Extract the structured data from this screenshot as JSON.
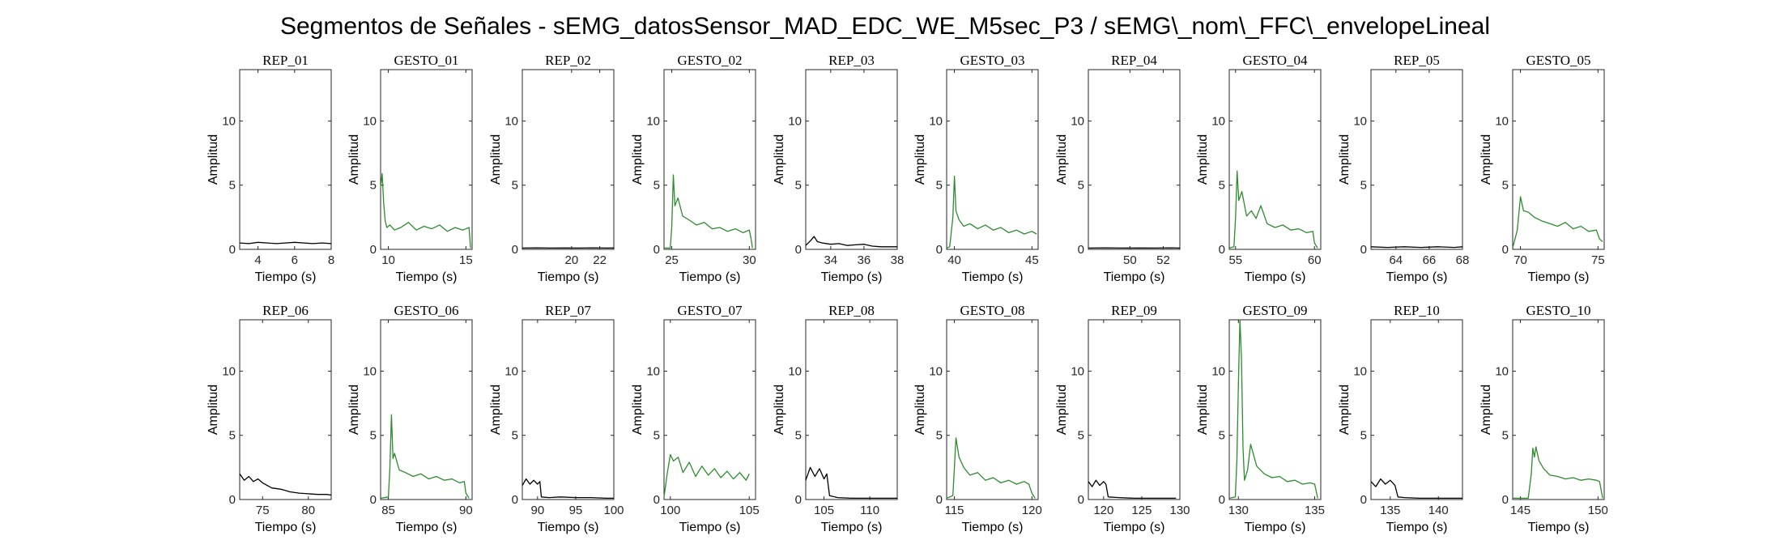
{
  "figure": {
    "title": "Segmentos de Señales - sEMG_datosSensor_MAD_EDC_WE_M5sec_P3 / sEMG\\_nom\\_FFC\\_envelopeLineal",
    "xlabel": "Tiempo (s)",
    "ylabel": "Amplitud",
    "colors": {
      "rep": "#000000",
      "gesto": "#2e8b2e",
      "axis": "#262626"
    }
  },
  "chart_data": [
    {
      "type": "line",
      "title": "REP_01",
      "kind": "rep",
      "xlim": [
        3,
        8
      ],
      "ylim": [
        0,
        14
      ],
      "xticks": [
        4,
        6,
        8
      ],
      "yticks": [
        0,
        5,
        10
      ],
      "x": [
        3,
        3.5,
        4,
        4.5,
        5,
        5.5,
        6,
        6.5,
        7,
        7.5,
        8
      ],
      "y": [
        0.5,
        0.45,
        0.55,
        0.5,
        0.45,
        0.5,
        0.55,
        0.5,
        0.45,
        0.5,
        0.45
      ]
    },
    {
      "type": "line",
      "title": "GESTO_01",
      "kind": "gesto",
      "xlim": [
        9.5,
        15.4
      ],
      "ylim": [
        0,
        14
      ],
      "xticks": [
        10,
        15
      ],
      "yticks": [
        0,
        5,
        10
      ],
      "x": [
        9.5,
        9.6,
        9.7,
        9.8,
        9.9,
        10.1,
        10.4,
        10.8,
        11.3,
        11.8,
        12.3,
        12.8,
        13.3,
        13.8,
        14.3,
        14.8,
        15.2,
        15.3
      ],
      "y": [
        4.8,
        5.9,
        3.6,
        2.2,
        1.7,
        1.9,
        1.5,
        1.7,
        2.1,
        1.5,
        1.8,
        1.6,
        1.9,
        1.4,
        1.7,
        1.5,
        1.7,
        0.1
      ]
    },
    {
      "type": "line",
      "title": "REP_02",
      "kind": "rep",
      "xlim": [
        16.5,
        23
      ],
      "ylim": [
        0,
        14
      ],
      "xticks": [
        20,
        22
      ],
      "yticks": [
        0,
        5,
        10
      ],
      "x": [
        16.5,
        17.5,
        18.5,
        19.5,
        20.5,
        21.5,
        22.5,
        23
      ],
      "y": [
        0.1,
        0.12,
        0.1,
        0.11,
        0.1,
        0.12,
        0.1,
        0.11
      ]
    },
    {
      "type": "line",
      "title": "GESTO_02",
      "kind": "gesto",
      "xlim": [
        24.5,
        30.4
      ],
      "ylim": [
        0,
        14
      ],
      "xticks": [
        25,
        30
      ],
      "yticks": [
        0,
        5,
        10
      ],
      "x": [
        24.5,
        24.9,
        25.0,
        25.1,
        25.2,
        25.4,
        25.7,
        26.1,
        26.6,
        27.1,
        27.6,
        28.1,
        28.6,
        29.1,
        29.6,
        30.0,
        30.1,
        30.2
      ],
      "y": [
        0.1,
        0.1,
        1.8,
        5.8,
        3.4,
        4.0,
        2.6,
        2.3,
        1.9,
        2.1,
        1.6,
        1.7,
        1.4,
        1.6,
        1.3,
        1.5,
        0.9,
        0.1
      ]
    },
    {
      "type": "line",
      "title": "REP_03",
      "kind": "rep",
      "xlim": [
        32.5,
        38
      ],
      "ylim": [
        0,
        14
      ],
      "xticks": [
        34,
        36,
        38
      ],
      "yticks": [
        0,
        5,
        10
      ],
      "x": [
        32.5,
        32.8,
        33.0,
        33.2,
        33.5,
        34.0,
        34.5,
        35.0,
        35.5,
        36.0,
        36.5,
        37.0,
        37.5,
        38.0
      ],
      "y": [
        0.3,
        0.7,
        1.0,
        0.6,
        0.5,
        0.4,
        0.45,
        0.3,
        0.35,
        0.4,
        0.25,
        0.2,
        0.2,
        0.2
      ]
    },
    {
      "type": "line",
      "title": "GESTO_03",
      "kind": "gesto",
      "xlim": [
        39.5,
        45.4
      ],
      "ylim": [
        0,
        14
      ],
      "xticks": [
        40,
        45
      ],
      "yticks": [
        0,
        5,
        10
      ],
      "x": [
        39.5,
        39.7,
        39.9,
        40.0,
        40.1,
        40.3,
        40.6,
        41.0,
        41.5,
        42.0,
        42.5,
        43.0,
        43.5,
        44.0,
        44.5,
        45.0,
        45.3
      ],
      "y": [
        0.1,
        0.2,
        2.5,
        5.7,
        3.0,
        2.3,
        1.8,
        2.0,
        1.6,
        1.9,
        1.5,
        1.7,
        1.3,
        1.5,
        1.2,
        1.4,
        1.2
      ]
    },
    {
      "type": "line",
      "title": "REP_04",
      "kind": "rep",
      "xlim": [
        47.5,
        53
      ],
      "ylim": [
        0,
        14
      ],
      "xticks": [
        50,
        52
      ],
      "yticks": [
        0,
        5,
        10
      ],
      "x": [
        47.5,
        48.5,
        49.5,
        50.5,
        51.5,
        52.5,
        53
      ],
      "y": [
        0.1,
        0.12,
        0.1,
        0.11,
        0.1,
        0.12,
        0.1
      ]
    },
    {
      "type": "line",
      "title": "GESTO_04",
      "kind": "gesto",
      "xlim": [
        54.6,
        60.4
      ],
      "ylim": [
        0,
        14
      ],
      "xticks": [
        55,
        60
      ],
      "yticks": [
        0,
        5,
        10
      ],
      "x": [
        54.6,
        54.9,
        55.0,
        55.1,
        55.2,
        55.4,
        55.7,
        56.0,
        56.3,
        56.6,
        57.0,
        57.5,
        58.0,
        58.5,
        59.0,
        59.5,
        59.9,
        60.0,
        60.2
      ],
      "y": [
        0.1,
        0.2,
        2.5,
        6.1,
        3.8,
        4.5,
        2.6,
        3.0,
        2.4,
        3.4,
        2.0,
        1.7,
        1.9,
        1.5,
        1.6,
        1.3,
        1.4,
        0.5,
        0.1
      ]
    },
    {
      "type": "line",
      "title": "REP_05",
      "kind": "rep",
      "xlim": [
        62.5,
        68
      ],
      "ylim": [
        0,
        14
      ],
      "xticks": [
        64,
        66,
        68
      ],
      "yticks": [
        0,
        5,
        10
      ],
      "x": [
        62.5,
        63.5,
        64.5,
        65.5,
        66.5,
        67.5,
        68
      ],
      "y": [
        0.2,
        0.15,
        0.2,
        0.15,
        0.2,
        0.15,
        0.2
      ]
    },
    {
      "type": "line",
      "title": "GESTO_05",
      "kind": "gesto",
      "xlim": [
        69.5,
        75.4
      ],
      "ylim": [
        0,
        14
      ],
      "xticks": [
        70,
        75
      ],
      "yticks": [
        0,
        5,
        10
      ],
      "x": [
        69.5,
        69.8,
        70.0,
        70.2,
        70.5,
        70.9,
        71.4,
        71.9,
        72.4,
        72.9,
        73.4,
        73.9,
        74.4,
        74.9,
        75.1,
        75.3
      ],
      "y": [
        0.1,
        1.5,
        4.1,
        3.0,
        2.9,
        2.5,
        2.2,
        2.0,
        1.8,
        2.1,
        1.6,
        1.8,
        1.4,
        1.5,
        0.8,
        0.6
      ]
    },
    {
      "type": "line",
      "title": "REP_06",
      "kind": "rep",
      "xlim": [
        72.5,
        82.5
      ],
      "ylim": [
        0,
        14
      ],
      "xticks": [
        75,
        80
      ],
      "yticks": [
        0,
        5,
        10
      ],
      "x": [
        72.5,
        73.0,
        73.5,
        74.0,
        74.5,
        75.0,
        75.5,
        76.0,
        77.0,
        78.0,
        79.0,
        80.0,
        81.0,
        82.0,
        82.5
      ],
      "y": [
        2.0,
        1.5,
        1.8,
        1.4,
        1.6,
        1.3,
        1.1,
        0.9,
        0.8,
        0.6,
        0.5,
        0.45,
        0.4,
        0.4,
        0.35
      ]
    },
    {
      "type": "line",
      "title": "GESTO_06",
      "kind": "gesto",
      "xlim": [
        84.5,
        90.4
      ],
      "ylim": [
        0,
        14
      ],
      "xticks": [
        85,
        90
      ],
      "yticks": [
        0,
        5,
        10
      ],
      "x": [
        84.5,
        85.0,
        85.1,
        85.2,
        85.3,
        85.4,
        85.7,
        86.1,
        86.6,
        87.1,
        87.6,
        88.1,
        88.6,
        89.1,
        89.6,
        89.9,
        90.0,
        90.2
      ],
      "y": [
        0.1,
        0.2,
        2.5,
        6.6,
        3.2,
        3.6,
        2.3,
        2.1,
        1.8,
        2.0,
        1.6,
        1.8,
        1.5,
        1.6,
        1.3,
        1.4,
        0.5,
        0.1
      ]
    },
    {
      "type": "line",
      "title": "REP_07",
      "kind": "rep",
      "xlim": [
        88,
        100
      ],
      "ylim": [
        0,
        14
      ],
      "xticks": [
        90,
        95,
        100
      ],
      "yticks": [
        0,
        5,
        10
      ],
      "x": [
        88,
        88.5,
        89,
        89.5,
        90,
        90.3,
        90.5,
        91.5,
        93,
        95,
        97,
        99,
        100
      ],
      "y": [
        1.1,
        1.6,
        1.2,
        1.5,
        1.2,
        1.4,
        0.2,
        0.15,
        0.2,
        0.15,
        0.15,
        0.1,
        0.1
      ]
    },
    {
      "type": "line",
      "title": "GESTO_07",
      "kind": "gesto",
      "xlim": [
        99.6,
        105.4
      ],
      "ylim": [
        0,
        14
      ],
      "xticks": [
        100,
        105
      ],
      "yticks": [
        0,
        5,
        10
      ],
      "x": [
        99.6,
        99.8,
        100.0,
        100.2,
        100.5,
        100.8,
        101.2,
        101.6,
        102.0,
        102.4,
        102.8,
        103.2,
        103.6,
        104.0,
        104.4,
        104.8,
        105.0
      ],
      "y": [
        0.2,
        2.0,
        3.5,
        3.0,
        3.3,
        2.1,
        2.9,
        1.8,
        2.6,
        1.9,
        2.4,
        1.7,
        2.2,
        1.6,
        2.1,
        1.5,
        2.0
      ]
    },
    {
      "type": "line",
      "title": "REP_08",
      "kind": "rep",
      "xlim": [
        103,
        113
      ],
      "ylim": [
        0,
        14
      ],
      "xticks": [
        105,
        110
      ],
      "yticks": [
        0,
        5,
        10
      ],
      "x": [
        103,
        103.5,
        104,
        104.5,
        105,
        105.3,
        105.6,
        106.5,
        108,
        110,
        112,
        113
      ],
      "y": [
        1.5,
        2.5,
        1.8,
        2.4,
        1.6,
        2.0,
        0.3,
        0.15,
        0.1,
        0.1,
        0.1,
        0.1
      ]
    },
    {
      "type": "line",
      "title": "GESTO_08",
      "kind": "gesto",
      "xlim": [
        114.5,
        120.4
      ],
      "ylim": [
        0,
        14
      ],
      "xticks": [
        115,
        120
      ],
      "yticks": [
        0,
        5,
        10
      ],
      "x": [
        114.5,
        114.9,
        115.0,
        115.1,
        115.3,
        115.6,
        116.0,
        116.5,
        117.0,
        117.5,
        118.0,
        118.5,
        119.0,
        119.5,
        119.8,
        120.0,
        120.2
      ],
      "y": [
        0.1,
        0.3,
        2.5,
        4.8,
        3.3,
        2.5,
        1.9,
        2.1,
        1.5,
        1.7,
        1.3,
        1.5,
        1.2,
        1.4,
        1.2,
        0.5,
        0.1
      ]
    },
    {
      "type": "line",
      "title": "REP_09",
      "kind": "rep",
      "xlim": [
        118,
        130
      ],
      "ylim": [
        0,
        14
      ],
      "xticks": [
        120,
        125,
        130
      ],
      "yticks": [
        0,
        5,
        10
      ],
      "x": [
        118,
        118.5,
        119,
        119.5,
        120,
        120.3,
        120.6,
        122,
        124,
        126,
        128,
        129.5
      ],
      "y": [
        1.4,
        1.0,
        1.5,
        1.1,
        1.4,
        1.2,
        0.2,
        0.15,
        0.1,
        0.1,
        0.1,
        0.1
      ]
    },
    {
      "type": "line",
      "title": "GESTO_09",
      "kind": "gesto",
      "xlim": [
        129.4,
        135.4
      ],
      "ylim": [
        0,
        14
      ],
      "xticks": [
        130,
        135
      ],
      "yticks": [
        0,
        5,
        10
      ],
      "x": [
        129.4,
        129.8,
        129.9,
        130.0,
        130.1,
        130.2,
        130.3,
        130.4,
        130.6,
        130.8,
        131.2,
        131.7,
        132.2,
        132.7,
        133.2,
        133.7,
        134.2,
        134.7,
        135.0,
        135.2
      ],
      "y": [
        0.1,
        0.2,
        3.0,
        9.0,
        14.0,
        11.0,
        4.0,
        1.5,
        2.3,
        4.3,
        2.6,
        2.0,
        1.7,
        1.8,
        1.4,
        1.5,
        1.2,
        1.3,
        1.2,
        0.1
      ]
    },
    {
      "type": "line",
      "title": "REP_10",
      "kind": "rep",
      "xlim": [
        133,
        142.5
      ],
      "ylim": [
        0,
        14
      ],
      "xticks": [
        135,
        140
      ],
      "yticks": [
        0,
        5,
        10
      ],
      "x": [
        133,
        133.5,
        134,
        134.5,
        135,
        135.5,
        135.8,
        136.5,
        138,
        140,
        142,
        142.5
      ],
      "y": [
        1.4,
        1.0,
        1.6,
        1.2,
        1.5,
        1.1,
        0.2,
        0.15,
        0.1,
        0.1,
        0.1,
        0.1
      ]
    },
    {
      "type": "line",
      "title": "GESTO_10",
      "kind": "gesto",
      "xlim": [
        144.5,
        150.4
      ],
      "ylim": [
        0,
        14
      ],
      "xticks": [
        145,
        150
      ],
      "yticks": [
        0,
        5,
        10
      ],
      "x": [
        144.5,
        145.5,
        145.7,
        145.8,
        145.9,
        146.0,
        146.2,
        146.5,
        146.9,
        147.4,
        147.9,
        148.4,
        148.9,
        149.4,
        149.9,
        150.1,
        150.3
      ],
      "y": [
        0.1,
        0.1,
        2.0,
        4.0,
        3.3,
        4.1,
        3.0,
        2.4,
        1.9,
        1.8,
        1.6,
        1.7,
        1.5,
        1.6,
        1.5,
        1.4,
        0.1
      ]
    }
  ]
}
